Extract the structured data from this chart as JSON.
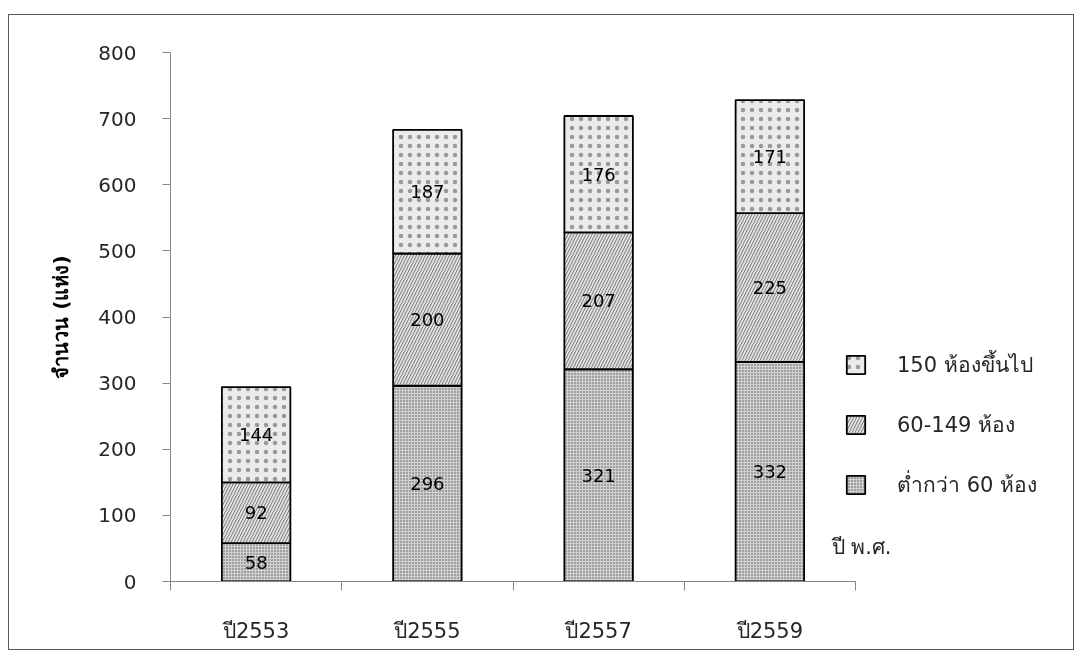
{
  "chart_data": {
    "type": "bar",
    "stacked": true,
    "categories": [
      "ปี2553",
      "ปี2555",
      "ปี2557",
      "ปี2559"
    ],
    "series": [
      {
        "name": "ต่ำกว่า 60 ห้อง",
        "color": "#d0d0d0",
        "values": [
          58,
          296,
          321,
          332
        ]
      },
      {
        "name": "60-149 ห้อง",
        "color": "#e0e0e0",
        "values": [
          92,
          200,
          207,
          225
        ]
      },
      {
        "name": "150 ห้องขึ้นไป",
        "color": "#ebebeb",
        "values": [
          144,
          187,
          176,
          171
        ]
      }
    ],
    "ylim": [
      0,
      800
    ],
    "yticks": [
      0,
      100,
      200,
      300,
      400,
      500,
      600,
      700,
      800
    ],
    "ylabel": "จำนวน (แห่ง)",
    "xlabel": "ปี พ.ศ.",
    "legend": "right",
    "data_labels": true
  }
}
